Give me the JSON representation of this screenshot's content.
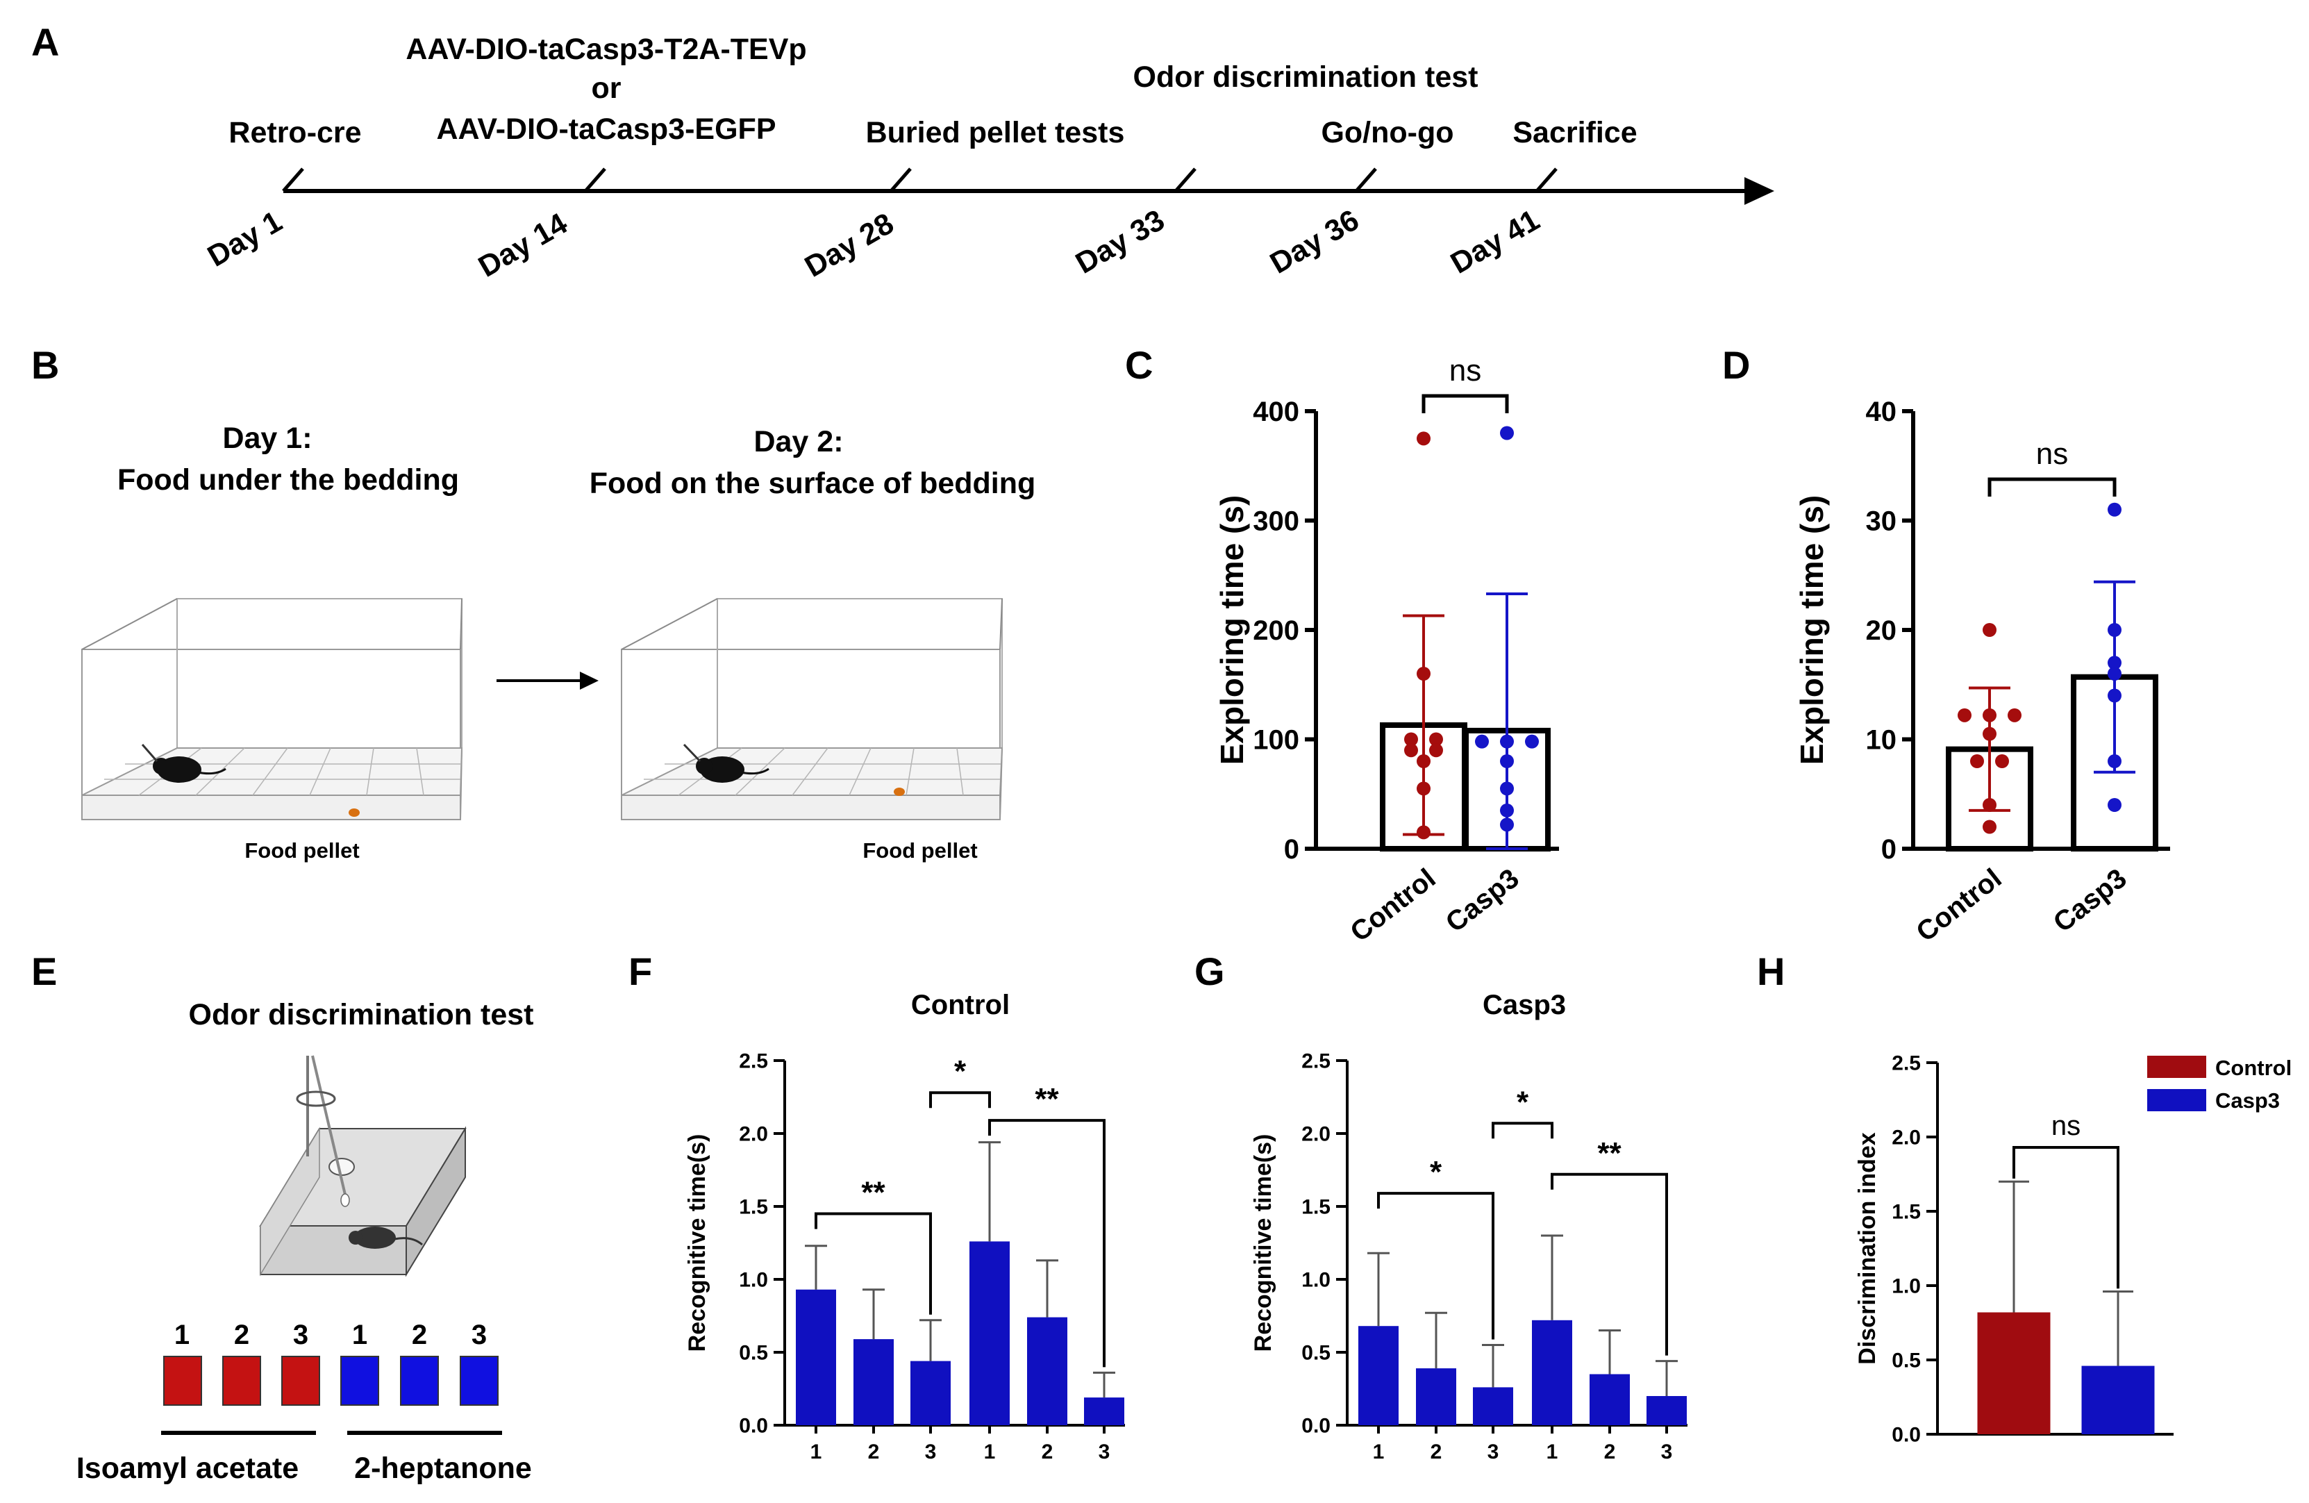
{
  "colors": {
    "control": "#a50d0d",
    "casp3": "#1515c8",
    "bar_blue": "#1010c0",
    "legend_control": "#a00c10",
    "pellet": "#d87010",
    "black": "#000000"
  },
  "panels": {
    "A": {
      "letter": "A",
      "events": [
        {
          "day": "Day 1",
          "label": "Retro-cre",
          "extra": []
        },
        {
          "day": "Day 14",
          "label": "AAV-DIO-taCasp3-EGFP",
          "extra": [
            "AAV-DIO-taCasp3-T2A-TEVp",
            "or"
          ]
        },
        {
          "day": "Day 28",
          "label": "Buried pellet tests",
          "extra": []
        },
        {
          "day": "Day 33",
          "label": "",
          "extra": []
        },
        {
          "day": "Day 36",
          "label": "Go/no-go",
          "extra": []
        },
        {
          "day": "Day 41",
          "label": "Sacrifice",
          "extra": []
        }
      ],
      "odor_label": "Odor discrimination  test"
    },
    "B": {
      "letter": "B",
      "day1_line1": "Day 1:",
      "day1_line2": "Food under the bedding",
      "day2_line1": "Day 2:",
      "day2_line2": "Food on the surface of bedding",
      "pellet_label_1": "Food pellet",
      "pellet_label_2": "Food pellet"
    },
    "E": {
      "letter": "E",
      "title": "Odor discrimination test",
      "box_numbers": [
        "1",
        "2",
        "3",
        "1",
        "2",
        "3"
      ],
      "odor1": "Isoamyl acetate",
      "odor2": "2-heptanone"
    }
  },
  "chart_data": [
    {
      "id": "C",
      "letter": "C",
      "type": "bar",
      "title": "",
      "ylabel": "Exploring time (s)",
      "ylim": [
        0,
        400
      ],
      "yticks": [
        0,
        100,
        200,
        300,
        400
      ],
      "categories": [
        "Control",
        "Casp3"
      ],
      "values": [
        113,
        108
      ],
      "sd": [
        100,
        125
      ],
      "points": [
        [
          375,
          160,
          100,
          100,
          90,
          90,
          80,
          55,
          15
        ],
        [
          380,
          98,
          98,
          98,
          80,
          55,
          35,
          22
        ]
      ],
      "significance": "ns"
    },
    {
      "id": "D",
      "letter": "D",
      "type": "bar",
      "title": "",
      "ylabel": "Exploring time (s)",
      "ylim": [
        0,
        40
      ],
      "yticks": [
        0,
        10,
        20,
        30,
        40
      ],
      "categories": [
        "Control",
        "Casp3"
      ],
      "values": [
        9.1,
        15.7
      ],
      "sd": [
        5.6,
        8.7
      ],
      "points": [
        [
          20,
          12.2,
          12.2,
          12.2,
          10.5,
          8,
          8,
          4,
          2
        ],
        [
          31,
          20,
          17,
          16,
          14,
          8,
          4
        ]
      ],
      "significance": "ns"
    },
    {
      "id": "F",
      "letter": "F",
      "type": "bar",
      "title": "Control",
      "ylabel": "Recognitive time(s)",
      "ylim": [
        0,
        2.5
      ],
      "yticks": [
        "0.0",
        "0.5",
        "1.0",
        "1.5",
        "2.0",
        "2.5"
      ],
      "categories": [
        "1",
        "2",
        "3",
        "1",
        "2",
        "3"
      ],
      "values": [
        0.93,
        0.59,
        0.44,
        1.26,
        0.74,
        0.19
      ],
      "sd": [
        0.3,
        0.34,
        0.28,
        0.68,
        0.39,
        0.17
      ],
      "brackets": [
        {
          "from": 0,
          "to": 2,
          "label": "**",
          "y": 1.45
        },
        {
          "from": 2,
          "to": 3,
          "label": "*",
          "y": 2.28
        },
        {
          "from": 3,
          "to": 5,
          "label": "**",
          "y": 2.09
        }
      ]
    },
    {
      "id": "G",
      "letter": "G",
      "type": "bar",
      "title": "Casp3",
      "ylabel": "Recognitive time(s)",
      "ylim": [
        0,
        2.5
      ],
      "yticks": [
        "0.0",
        "0.5",
        "1.0",
        "1.5",
        "2.0",
        "2.5"
      ],
      "categories": [
        "1",
        "2",
        "3",
        "1",
        "2",
        "3"
      ],
      "values": [
        0.68,
        0.39,
        0.26,
        0.72,
        0.35,
        0.2
      ],
      "sd": [
        0.5,
        0.38,
        0.29,
        0.58,
        0.3,
        0.24
      ],
      "brackets": [
        {
          "from": 0,
          "to": 2,
          "label": "*",
          "y": 1.59
        },
        {
          "from": 2,
          "to": 3,
          "label": "*",
          "y": 2.07
        },
        {
          "from": 3,
          "to": 5,
          "label": "**",
          "y": 1.72
        }
      ]
    },
    {
      "id": "H",
      "letter": "H",
      "type": "bar",
      "title": "",
      "ylabel": "Discrimination index",
      "ylim": [
        0,
        2.5
      ],
      "yticks": [
        "0.0",
        "0.5",
        "1.0",
        "1.5",
        "2.0",
        "2.5"
      ],
      "categories": [
        "Control",
        "Casp3"
      ],
      "values": [
        0.82,
        0.46
      ],
      "sd": [
        0.88,
        0.5
      ],
      "legend": [
        "Control",
        "Casp3"
      ],
      "significance": "ns"
    }
  ]
}
